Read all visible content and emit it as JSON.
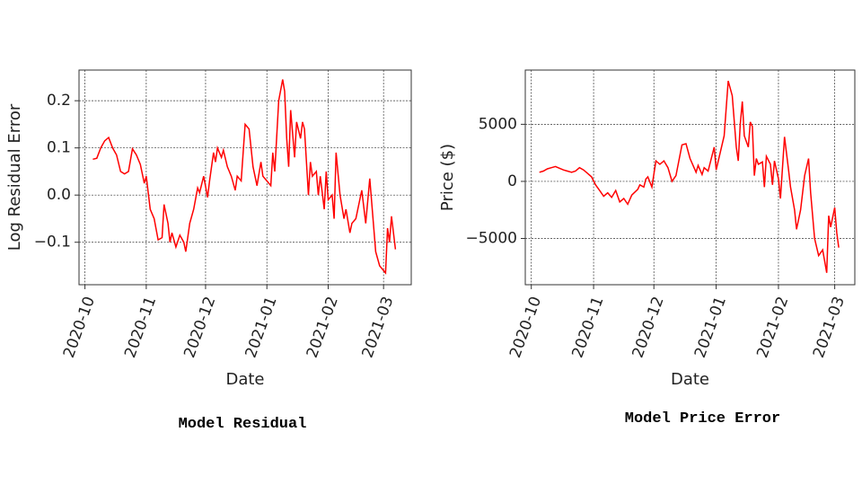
{
  "chart_data": [
    {
      "type": "line",
      "title": "Model Residual",
      "xlabel": "Date",
      "ylabel": "Log Residual Error",
      "color": "#ff0000",
      "grid": true,
      "xlim": [
        -3,
        165
      ],
      "ylim": [
        -0.19,
        0.265
      ],
      "xticks": [
        {
          "value": 0,
          "label": "2020-10"
        },
        {
          "value": 31,
          "label": "2020-11"
        },
        {
          "value": 61,
          "label": "2020-12"
        },
        {
          "value": 92,
          "label": "2021-01"
        },
        {
          "value": 123,
          "label": "2021-02"
        },
        {
          "value": 151,
          "label": "2021-03"
        }
      ],
      "yticks": [
        {
          "value": -0.1,
          "label": "−0.1"
        },
        {
          "value": 0,
          "label": "0.0"
        },
        0.1,
        0.2
      ],
      "x": [
        4,
        6,
        8,
        10,
        12,
        14,
        16,
        18,
        20,
        22,
        24,
        26,
        28,
        30,
        31,
        33,
        35,
        37,
        39,
        40,
        42,
        43,
        44,
        46,
        48,
        50,
        51,
        53,
        55,
        57,
        58,
        60,
        62,
        63,
        65,
        66,
        67,
        69,
        70,
        72,
        74,
        76,
        77,
        79,
        81,
        83,
        85,
        86,
        87,
        89,
        90,
        92,
        94,
        95,
        96,
        98,
        100,
        101,
        102,
        103,
        104,
        106,
        107,
        109,
        110,
        111,
        113,
        114,
        115,
        117,
        118,
        119,
        121,
        122,
        123,
        125,
        126,
        127,
        129,
        131,
        132,
        134,
        135,
        137,
        140,
        142,
        144,
        147,
        149,
        152,
        153,
        154,
        155,
        156,
        157
      ],
      "values": [
        0.076,
        0.078,
        0.1,
        0.115,
        0.122,
        0.1,
        0.085,
        0.05,
        0.045,
        0.05,
        0.098,
        0.085,
        0.065,
        0.025,
        0.04,
        -0.03,
        -0.05,
        -0.095,
        -0.09,
        -0.02,
        -0.06,
        -0.1,
        -0.08,
        -0.11,
        -0.085,
        -0.1,
        -0.12,
        -0.06,
        -0.03,
        0.015,
        0.005,
        0.04,
        -0.005,
        0.03,
        0.09,
        0.07,
        0.1,
        0.08,
        0.095,
        0.06,
        0.04,
        0.01,
        0.04,
        0.03,
        0.15,
        0.14,
        0.06,
        0.04,
        0.02,
        0.07,
        0.04,
        0.03,
        0.02,
        0.09,
        0.05,
        0.2,
        0.245,
        0.22,
        0.12,
        0.06,
        0.18,
        0.08,
        0.155,
        0.12,
        0.155,
        0.14,
        0.0,
        0.07,
        0.04,
        0.05,
        0.0,
        0.04,
        -0.03,
        0.05,
        -0.01,
        0.0,
        -0.05,
        0.09,
        0.0,
        -0.05,
        -0.03,
        -0.08,
        -0.06,
        -0.05,
        0.01,
        -0.06,
        0.035,
        -0.12,
        -0.15,
        -0.165,
        -0.07,
        -0.1,
        -0.045,
        -0.08,
        -0.115
      ]
    },
    {
      "type": "line",
      "title": "Model Price Error",
      "xlabel": "Date",
      "ylabel": "Price ($)",
      "color": "#ff0000",
      "grid": true,
      "xlim": [
        -3,
        161
      ],
      "ylim": [
        -9050,
        9750
      ],
      "xticks": [
        {
          "value": 0,
          "label": "2020-10"
        },
        {
          "value": 31,
          "label": "2020-11"
        },
        {
          "value": 61,
          "label": "2020-12"
        },
        {
          "value": 92,
          "label": "2021-01"
        },
        {
          "value": 123,
          "label": "2021-02"
        },
        {
          "value": 151,
          "label": "2021-03"
        }
      ],
      "yticks": [
        {
          "value": -5000,
          "label": "−5000"
        },
        0,
        5000
      ],
      "x": [
        4,
        6,
        8,
        10,
        12,
        14,
        16,
        18,
        20,
        22,
        24,
        26,
        28,
        30,
        32,
        34,
        36,
        38,
        40,
        42,
        44,
        46,
        48,
        50,
        53,
        54,
        56,
        57,
        58,
        60,
        62,
        64,
        66,
        68,
        70,
        72,
        75,
        77,
        79,
        82,
        83,
        85,
        86,
        88,
        91,
        92,
        96,
        98,
        100,
        102,
        103,
        104,
        105,
        106,
        108,
        109,
        110,
        111,
        112,
        113,
        115,
        116,
        117,
        119,
        120,
        121,
        123,
        124,
        126,
        128,
        129,
        131,
        132,
        134,
        136,
        138,
        139,
        141,
        143,
        145,
        147,
        148,
        149,
        151,
        152,
        153
      ],
      "values": [
        800,
        900,
        1100,
        1200,
        1300,
        1150,
        1000,
        900,
        800,
        900,
        1200,
        1000,
        700,
        400,
        -300,
        -800,
        -1300,
        -1000,
        -1400,
        -800,
        -1800,
        -1500,
        -2000,
        -1200,
        -700,
        -300,
        -500,
        200,
        400,
        -500,
        1800,
        1500,
        1800,
        1200,
        0,
        500,
        3200,
        3300,
        2000,
        800,
        1400,
        600,
        1200,
        900,
        3000,
        1000,
        4000,
        8800,
        7500,
        3000,
        1800,
        5000,
        7000,
        4000,
        3000,
        5200,
        4800,
        500,
        2000,
        1500,
        1700,
        -500,
        2200,
        1500,
        -300,
        1800,
        200,
        -1500,
        3900,
        1000,
        -500,
        -2500,
        -4200,
        -2500,
        500,
        2000,
        -1000,
        -5000,
        -6500,
        -6000,
        -8000,
        -3000,
        -4000,
        -2300,
        -4500,
        -5800
      ]
    }
  ]
}
